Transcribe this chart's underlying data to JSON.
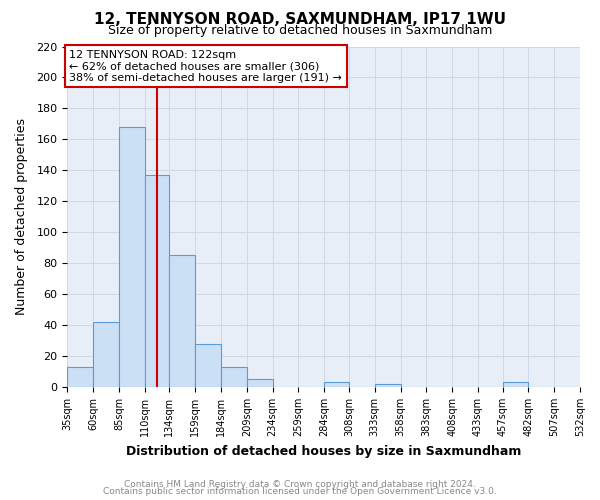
{
  "title": "12, TENNYSON ROAD, SAXMUNDHAM, IP17 1WU",
  "subtitle": "Size of property relative to detached houses in Saxmundham",
  "xlabel": "Distribution of detached houses by size in Saxmundham",
  "ylabel": "Number of detached properties",
  "bin_edges": [
    35,
    60,
    85,
    110,
    134,
    159,
    184,
    209,
    234,
    259,
    284,
    308,
    333,
    358,
    383,
    408,
    433,
    457,
    482,
    507,
    532
  ],
  "bar_heights": [
    13,
    42,
    168,
    137,
    85,
    28,
    13,
    5,
    0,
    0,
    3,
    0,
    2,
    0,
    0,
    0,
    0,
    3,
    0,
    0
  ],
  "bar_color": "#cce0f5",
  "bar_edge_color": "#5b9bd5",
  "grid_color": "#d0d8e8",
  "plot_bg_color": "#e8eef8",
  "fig_bg_color": "#ffffff",
  "vline_x": 122,
  "vline_color": "#cc0000",
  "annotation_text": "12 TENNYSON ROAD: 122sqm\n← 62% of detached houses are smaller (306)\n38% of semi-detached houses are larger (191) →",
  "annotation_box_color": "#ffffff",
  "annotation_box_edge": "#cc0000",
  "ylim": [
    0,
    220
  ],
  "yticks": [
    0,
    20,
    40,
    60,
    80,
    100,
    120,
    140,
    160,
    180,
    200,
    220
  ],
  "tick_labels": [
    "35sqm",
    "60sqm",
    "85sqm",
    "110sqm",
    "134sqm",
    "159sqm",
    "184sqm",
    "209sqm",
    "234sqm",
    "259sqm",
    "284sqm",
    "308sqm",
    "333sqm",
    "358sqm",
    "383sqm",
    "408sqm",
    "433sqm",
    "457sqm",
    "482sqm",
    "507sqm",
    "532sqm"
  ],
  "footer_line1": "Contains HM Land Registry data © Crown copyright and database right 2024.",
  "footer_line2": "Contains public sector information licensed under the Open Government Licence v3.0."
}
